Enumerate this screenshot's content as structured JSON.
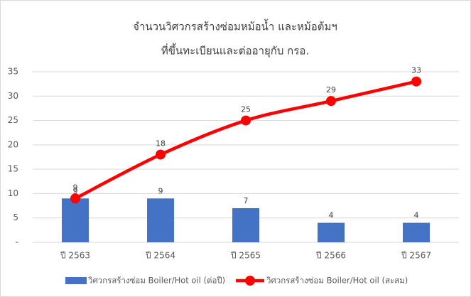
{
  "chart_data": {
    "type": "combo",
    "title": "จำนวนวิศวกรสร้างซ่อมหม้อน้ำ และหม้อต้มฯ",
    "subtitle": "ที่ขึ้นทะเบียนและต่ออายุกับ กรอ.",
    "categories": [
      "ปี 2563",
      "ปี 2564",
      "ปี 2565",
      "ปี 2566",
      "ปี 2567"
    ],
    "series": [
      {
        "name": "วิศวกรสร้างซ่อม Boiler/Hot oil (ต่อปี)",
        "type": "bar",
        "color": "#4472c4",
        "values": [
          9,
          9,
          7,
          4,
          4
        ]
      },
      {
        "name": "วิศวกรสร้างซ่อม Boiler/Hot oil (สะสม)",
        "type": "line",
        "color": "#ff0000",
        "values": [
          9,
          18,
          25,
          29,
          33
        ]
      }
    ],
    "ylim": [
      0,
      35
    ],
    "yticks": [
      {
        "value": 0,
        "label": "-"
      },
      5,
      10,
      15,
      20,
      25,
      30,
      35
    ],
    "grid": true,
    "legend": "bottom"
  }
}
